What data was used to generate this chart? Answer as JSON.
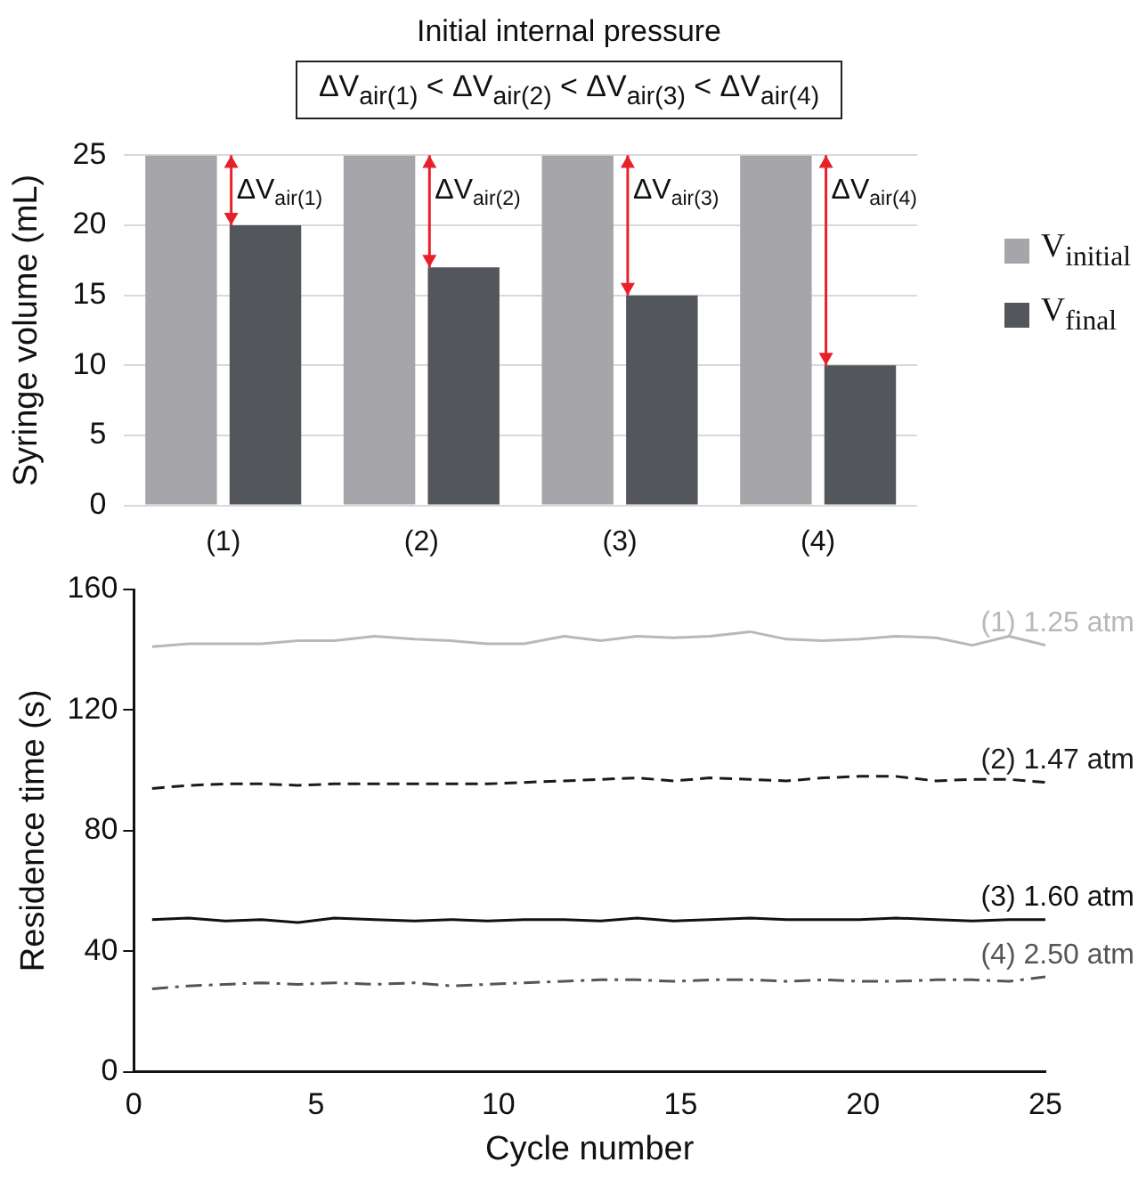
{
  "chart_data": [
    {
      "type": "bar",
      "title": "Initial internal pressure",
      "subtitle": "ΔV$_{air(1)}$ <  ΔV$_{air(2)}$ <  ΔV$_{air(3)}$ < ΔV$_{air(4)}$",
      "ylabel": "Syringe volume (mL)",
      "categories": [
        "(1)",
        "(2)",
        "(3)",
        "(4)"
      ],
      "series": [
        {
          "name": "V$_{initial}$",
          "color": "#a6a6aa",
          "values": [
            25,
            25,
            25,
            25
          ]
        },
        {
          "name": "V$_{final}$",
          "color": "#53565a",
          "values": [
            20,
            17,
            15,
            10
          ]
        }
      ],
      "ylim": [
        0,
        25
      ],
      "yticks": [
        0,
        5,
        10,
        15,
        20,
        25
      ],
      "grid": "y",
      "legend": "right",
      "annotations": [
        {
          "text": "ΔV$_{air(1)}$",
          "x": "(1)",
          "y": 22.5
        },
        {
          "text": "ΔV$_{air(2)}$",
          "x": "(2)",
          "y": 22.5
        },
        {
          "text": "ΔV$_{air(3)}$",
          "x": "(3)",
          "y": 22.5
        },
        {
          "text": "ΔV$_{air(4)}$",
          "x": "(4)",
          "y": 22.5
        }
      ]
    },
    {
      "type": "line",
      "xlabel": "Cycle number",
      "ylabel": "Residence time (s)",
      "marker": "none",
      "grid": false,
      "legend": false,
      "xlim": [
        0,
        25
      ],
      "xticks": [
        0,
        5,
        10,
        15,
        20,
        25
      ],
      "ylim": [
        0,
        160
      ],
      "yticks": [
        0,
        40,
        80,
        120,
        160
      ],
      "series": [
        {
          "name": "(1) 1.25 atm",
          "color": "#b8b8bc",
          "line_style": "solid",
          "x": [
            0.5,
            1.5,
            2.5,
            3.5,
            4.5,
            5.5,
            6.6,
            7.7,
            8.7,
            9.7,
            10.7,
            11.8,
            12.8,
            13.8,
            14.8,
            15.8,
            16.9,
            17.9,
            18.9,
            19.9,
            20.9,
            22,
            23,
            24,
            25
          ],
          "values": [
            141,
            142,
            142,
            142,
            143,
            143,
            144.5,
            143.5,
            143,
            142,
            142,
            144.5,
            143,
            144.5,
            144,
            144.5,
            146,
            143.5,
            143,
            143.5,
            144.5,
            144,
            141.5,
            144.5,
            141.5
          ]
        },
        {
          "name": "(2) 1.47 atm",
          "color": "#1a1a1a",
          "line_style": "dashed",
          "x": [
            0.5,
            1.5,
            2.5,
            3.5,
            4.5,
            5.5,
            6.6,
            7.7,
            8.7,
            9.7,
            10.7,
            11.8,
            12.8,
            13.8,
            14.8,
            15.8,
            16.9,
            17.9,
            18.9,
            19.9,
            20.9,
            22,
            23,
            24,
            25
          ],
          "values": [
            94,
            95,
            95.5,
            95.5,
            95,
            95.5,
            95.5,
            95.5,
            95.5,
            95.5,
            96,
            96.5,
            97,
            97.5,
            96.5,
            97.5,
            97,
            96.5,
            97.5,
            98,
            98,
            96.5,
            97,
            97,
            96
          ]
        },
        {
          "name": "(3) 1.60 atm",
          "color": "#111111",
          "line_style": "solid",
          "x": [
            0.5,
            1.5,
            2.5,
            3.5,
            4.5,
            5.5,
            6.6,
            7.7,
            8.7,
            9.7,
            10.7,
            11.8,
            12.8,
            13.8,
            14.8,
            15.8,
            16.9,
            17.9,
            18.9,
            19.9,
            20.9,
            22,
            23,
            24,
            25
          ],
          "values": [
            50.5,
            51,
            50,
            50.5,
            49.5,
            51,
            50.5,
            50,
            50.5,
            50,
            50.5,
            50.5,
            50,
            51,
            50,
            50.5,
            51,
            50.5,
            50.5,
            50.5,
            51,
            50.5,
            50,
            50.5,
            50.5
          ]
        },
        {
          "name": "(4) 2.50 atm",
          "color": "#555555",
          "line_style": "dashdot",
          "x": [
            0.5,
            1.5,
            2.5,
            3.5,
            4.5,
            5.5,
            6.6,
            7.7,
            8.7,
            9.7,
            10.7,
            11.8,
            12.8,
            13.8,
            14.8,
            15.8,
            16.9,
            17.9,
            18.9,
            19.9,
            20.9,
            22,
            23,
            24,
            25
          ],
          "values": [
            27.5,
            28.5,
            29,
            29.5,
            29,
            29.5,
            29,
            29.5,
            28.5,
            29,
            29.5,
            30,
            30.5,
            30.5,
            30,
            30.5,
            30.5,
            30,
            30.5,
            30,
            30,
            30.5,
            30.5,
            30,
            31.5
          ]
        }
      ]
    }
  ]
}
